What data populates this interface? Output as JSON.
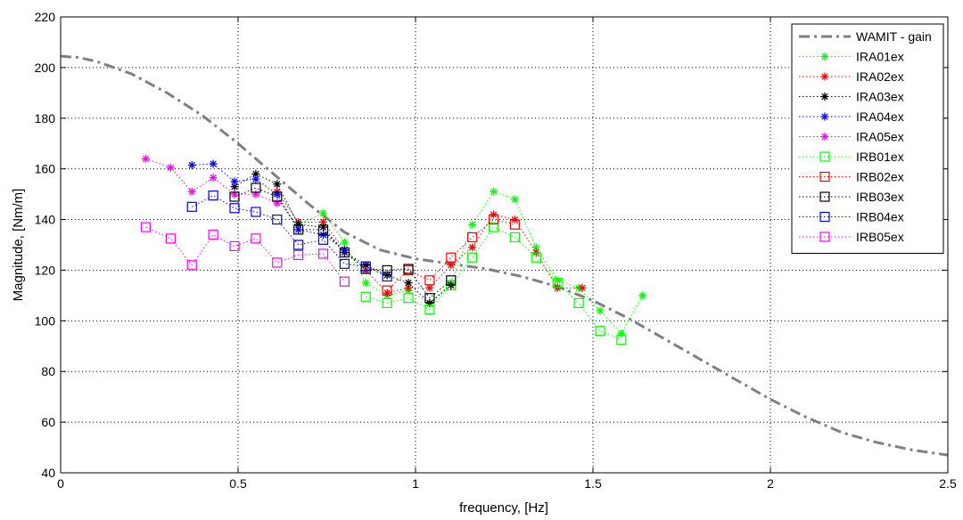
{
  "chart_data": {
    "type": "line",
    "title": "",
    "xlabel": "frequency, [Hz]",
    "ylabel": "Magnitude, [Nm/m]",
    "xlim": [
      0,
      2.5
    ],
    "ylim": [
      40,
      220
    ],
    "xticks": [
      0,
      0.5,
      1,
      1.5,
      2,
      2.5
    ],
    "xtick_labels": [
      "0",
      "0.5",
      "1",
      "1.5",
      "2",
      "2.5"
    ],
    "yticks": [
      40,
      60,
      80,
      100,
      120,
      140,
      160,
      180,
      200,
      220
    ],
    "ytick_labels": [
      "40",
      "60",
      "80",
      "100",
      "120",
      "140",
      "160",
      "180",
      "200",
      "220"
    ],
    "grid": true,
    "legend_position": "top-right",
    "series": [
      {
        "name": "WAMIT - gain",
        "color": "#808080",
        "style": "dashdot",
        "marker": "none",
        "x": [
          0,
          0.05,
          0.1,
          0.2,
          0.3,
          0.4,
          0.5,
          0.6,
          0.7,
          0.8,
          0.9,
          1.0,
          1.1,
          1.2,
          1.3,
          1.4,
          1.5,
          1.6,
          1.7,
          1.8,
          1.9,
          2.0,
          2.1,
          2.2,
          2.3,
          2.4,
          2.5
        ],
        "y": [
          204.5,
          204,
          202.5,
          197.5,
          190,
          181,
          170,
          158,
          146,
          135,
          128,
          124.5,
          122.5,
          120.5,
          117.5,
          113.5,
          108,
          101,
          93,
          85,
          77,
          69,
          62,
          56,
          52,
          49,
          47
        ]
      },
      {
        "name": "IRA01ex",
        "color": "#00ff00",
        "style": "dotted",
        "marker": "star",
        "x": [
          0.67,
          0.74,
          0.8,
          0.86,
          0.92,
          0.98,
          1.04,
          1.1,
          1.16,
          1.22,
          1.28,
          1.34,
          1.4,
          1.46,
          1.52,
          1.58,
          1.64
        ],
        "y": [
          138,
          142.5,
          131,
          115,
          110,
          112,
          107,
          115,
          138,
          151,
          148,
          129,
          116,
          113,
          104,
          95,
          110
        ]
      },
      {
        "name": "IRA02ex",
        "color": "#ff0000",
        "style": "dotted",
        "marker": "star",
        "x": [
          0.61,
          0.67,
          0.74,
          0.8,
          0.86,
          0.92,
          0.98,
          1.04,
          1.1,
          1.16,
          1.22,
          1.28,
          1.34,
          1.4,
          1.47
        ],
        "y": [
          151,
          139,
          139,
          128,
          120,
          111,
          113,
          113,
          122,
          129,
          142,
          140,
          127,
          113,
          113
        ]
      },
      {
        "name": "IRA03ex",
        "color": "#000000",
        "style": "dotted",
        "marker": "star",
        "x": [
          0.49,
          0.55,
          0.61,
          0.67,
          0.74,
          0.8,
          0.86,
          0.92,
          0.98,
          1.04,
          1.1
        ],
        "y": [
          153,
          158,
          154,
          138,
          137,
          127,
          122,
          118,
          115,
          107,
          114
        ]
      },
      {
        "name": "IRA04ex",
        "color": "#0000ff",
        "style": "dotted",
        "marker": "star",
        "x": [
          0.37,
          0.43,
          0.49,
          0.55,
          0.61,
          0.67,
          0.74,
          0.8
        ],
        "y": [
          161.5,
          162,
          155,
          156,
          150,
          136,
          134,
          128
        ]
      },
      {
        "name": "IRA05ex",
        "color": "#ff00ff",
        "style": "dotted",
        "marker": "star",
        "x": [
          0.24,
          0.31,
          0.37,
          0.43,
          0.49,
          0.55,
          0.61
        ],
        "y": [
          164,
          160.5,
          151,
          156.5,
          150,
          150,
          146.5
        ]
      },
      {
        "name": "IRB01ex",
        "color": "#00ff00",
        "style": "dotted",
        "marker": "square",
        "x": [
          0.86,
          0.92,
          0.98,
          1.04,
          1.1,
          1.16,
          1.22,
          1.28,
          1.34,
          1.4,
          1.46,
          1.52,
          1.58
        ],
        "y": [
          109.5,
          107,
          109,
          104.5,
          114,
          125,
          137,
          133,
          125,
          115,
          107,
          96,
          92.5
        ]
      },
      {
        "name": "IRB02ex",
        "color": "#ff0000",
        "style": "dotted",
        "marker": "square",
        "x": [
          0.92,
          0.98,
          1.04,
          1.1,
          1.16,
          1.22,
          1.28
        ],
        "y": [
          112,
          120,
          116,
          125,
          133,
          140,
          138
        ]
      },
      {
        "name": "IRB03ex",
        "color": "#000000",
        "style": "dotted",
        "marker": "square",
        "x": [
          0.49,
          0.55,
          0.61,
          0.67,
          0.74,
          0.8,
          0.86,
          0.92,
          0.98,
          1.04,
          1.1
        ],
        "y": [
          149,
          152.5,
          149,
          136,
          136,
          127,
          120.5,
          120,
          120.5,
          109,
          116
        ]
      },
      {
        "name": "IRB04ex",
        "color": "#0000ff",
        "style": "dotted",
        "marker": "square",
        "x": [
          0.37,
          0.43,
          0.49,
          0.55,
          0.61,
          0.67,
          0.74,
          0.8,
          0.86,
          0.92
        ],
        "y": [
          145,
          149.5,
          144.5,
          143,
          140,
          130,
          132,
          122.5,
          121.5,
          117.5
        ]
      },
      {
        "name": "IRB05ex",
        "color": "#ff00ff",
        "style": "dotted",
        "marker": "square",
        "x": [
          0.24,
          0.31,
          0.37,
          0.43,
          0.49,
          0.55,
          0.61,
          0.67,
          0.74,
          0.8
        ],
        "y": [
          137,
          132.5,
          122,
          134,
          129.5,
          132.5,
          123,
          126,
          126.5,
          115.5
        ]
      }
    ]
  }
}
